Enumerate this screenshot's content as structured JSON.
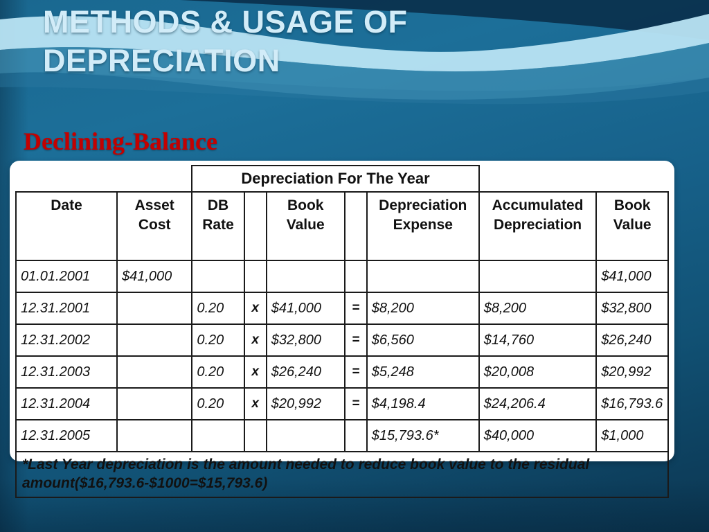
{
  "slide": {
    "title_line1": "METHODS & USAGE OF",
    "title_line2": "DEPRECIATION",
    "subtitle": "Declining-Balance"
  },
  "table": {
    "group_header": "Depreciation For The Year",
    "columns": [
      "Date",
      "Asset Cost",
      "DB Rate",
      "",
      "Book Value",
      "",
      "Depreciation Expense",
      "Accumulated Depreciation",
      "Book Value"
    ],
    "rows": [
      [
        "01.01.2001",
        "$41,000",
        "",
        "",
        "",
        "",
        "",
        "",
        "$41,000"
      ],
      [
        "12.31.2001",
        "",
        "0.20",
        "x",
        "$41,000",
        "=",
        "$8,200",
        "$8,200",
        "$32,800"
      ],
      [
        "12.31.2002",
        "",
        "0.20",
        "x",
        "$32,800",
        "=",
        "$6,560",
        "$14,760",
        "$26,240"
      ],
      [
        "12.31.2003",
        "",
        "0.20",
        "x",
        "$26,240",
        "=",
        "$5,248",
        "$20,008",
        "$20,992"
      ],
      [
        "12.31.2004",
        "",
        "0.20",
        "x",
        "$20,992",
        "=",
        "$4,198.4",
        "$24,206.4",
        "$16,793.6"
      ],
      [
        "12.31.2005",
        "",
        "",
        "",
        "",
        "",
        "$15,793.6*",
        "$40,000",
        "$1,000"
      ]
    ],
    "footnote_line1": "*Last Year depreciation is the amount needed to reduce book value to the residual",
    "footnote_line2": "amount($16,793.6-$1000=$15,793.6)"
  },
  "colors": {
    "background_top": "#1c6f99",
    "background_bottom": "#0c3853",
    "swoosh_light": "#b9e4f3",
    "swoosh_mid": "#4d9cc0",
    "top_dark_band": "#0a2f4a",
    "title_text": "#d2ecf8",
    "subtitle_text": "#c40000",
    "card_background": "#ffffff",
    "table_text": "#111111"
  }
}
